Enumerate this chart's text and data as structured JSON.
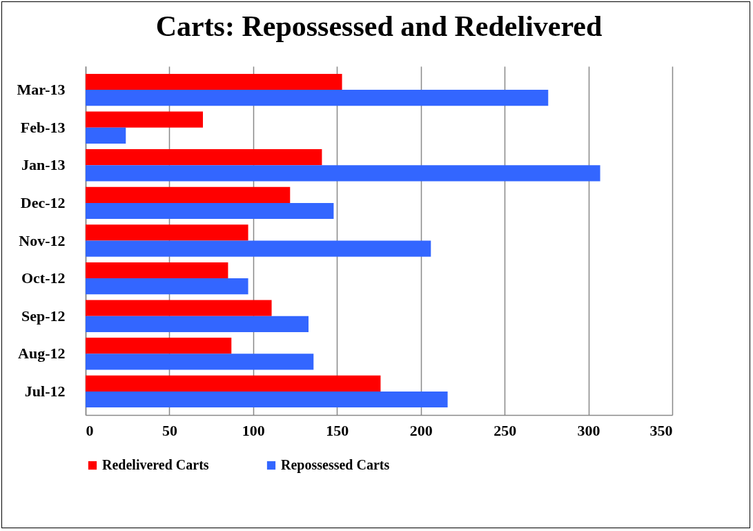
{
  "chart_data": {
    "type": "bar",
    "orientation": "horizontal",
    "title": "Carts: Repossessed and Redelivered",
    "categories": [
      "Mar-13",
      "Feb-13",
      "Jan-13",
      "Dec-12",
      "Nov-12",
      "Oct-12",
      "Sep-12",
      "Aug-12",
      "Jul-12"
    ],
    "series": [
      {
        "name": "Redelivered Carts",
        "color": "#ff0000",
        "values": [
          153,
          70,
          141,
          122,
          97,
          85,
          111,
          87,
          176
        ]
      },
      {
        "name": "Repossessed Carts",
        "color": "#3366ff",
        "values": [
          276,
          24,
          307,
          148,
          206,
          97,
          133,
          136,
          216
        ]
      }
    ],
    "xlim": [
      0,
      350
    ],
    "xticks": [
      0,
      50,
      100,
      150,
      200,
      250,
      300,
      350
    ],
    "grid": "x",
    "legend": "bottom left"
  }
}
